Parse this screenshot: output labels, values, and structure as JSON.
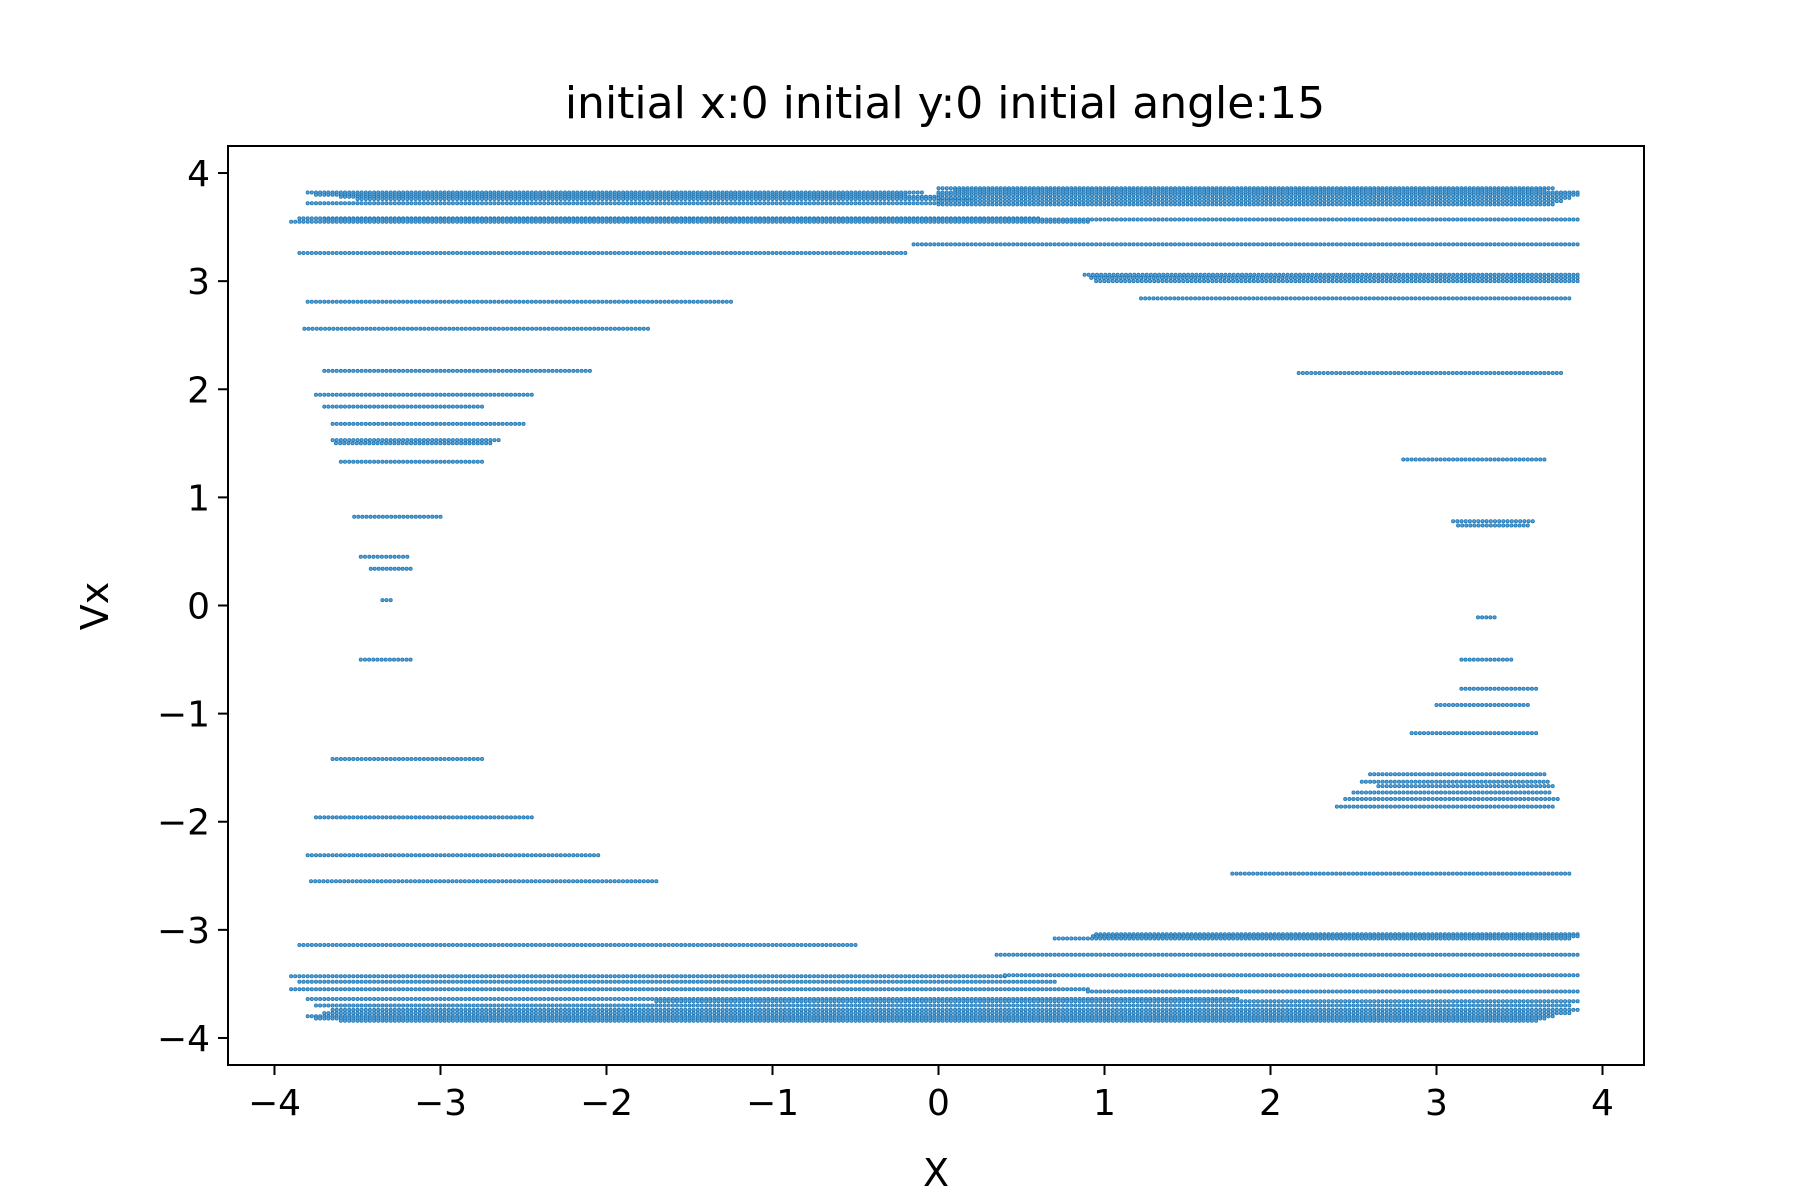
{
  "chart_data": {
    "type": "scatter",
    "title": "initial x:0  initial y:0 initial angle:15",
    "xlabel": "X",
    "ylabel": "Vx",
    "xlim": [
      -4.28,
      4.25
    ],
    "ylim": [
      -4.25,
      4.25
    ],
    "xticks": [
      -4,
      -3,
      -2,
      -1,
      0,
      1,
      2,
      3,
      4
    ],
    "yticks": [
      -4,
      -3,
      -2,
      -1,
      0,
      1,
      2,
      3,
      4
    ],
    "xtick_labels": [
      "−4",
      "−3",
      "−2",
      "−1",
      "0",
      "1",
      "2",
      "3",
      "4"
    ],
    "ytick_labels": [
      "−4",
      "−3",
      "−2",
      "−1",
      "0",
      "1",
      "2",
      "3",
      "4"
    ],
    "grid": false,
    "legend": "none",
    "marker_color": "#1f77b4",
    "series": [
      {
        "segments": [
          {
            "y": 3.82,
            "x0": -3.8,
            "x1": -0.1
          },
          {
            "y": 3.8,
            "x0": -3.75,
            "x1": -0.2
          },
          {
            "y": 3.78,
            "x0": -3.6,
            "x1": 0.0
          },
          {
            "y": 3.76,
            "x0": -3.5,
            "x1": 0.2
          },
          {
            "y": 3.72,
            "x0": -3.8,
            "x1": 0.0
          },
          {
            "y": 3.86,
            "x0": 0.0,
            "x1": 3.7
          },
          {
            "y": 3.84,
            "x0": 0.1,
            "x1": 3.65
          },
          {
            "y": 3.82,
            "x0": 0.0,
            "x1": 3.85
          },
          {
            "y": 3.8,
            "x0": 0.0,
            "x1": 3.85
          },
          {
            "y": 3.77,
            "x0": 0.0,
            "x1": 3.8
          },
          {
            "y": 3.74,
            "x0": 0.0,
            "x1": 3.75
          },
          {
            "y": 3.71,
            "x0": 0.0,
            "x1": 3.7
          },
          {
            "y": 3.58,
            "x0": -3.85,
            "x1": 0.6
          },
          {
            "y": 3.57,
            "x0": -3.7,
            "x1": 0.9
          },
          {
            "y": 3.55,
            "x0": -3.9,
            "x1": 0.9
          },
          {
            "y": 3.57,
            "x0": 0.9,
            "x1": 3.85
          },
          {
            "y": 3.26,
            "x0": -3.85,
            "x1": -0.2
          },
          {
            "y": 3.34,
            "x0": -0.15,
            "x1": 3.85
          },
          {
            "y": 3.06,
            "x0": 0.88,
            "x1": 3.85
          },
          {
            "y": 3.03,
            "x0": 0.92,
            "x1": 3.85
          },
          {
            "y": 3.0,
            "x0": 0.95,
            "x1": 3.85
          },
          {
            "y": 2.84,
            "x0": 1.22,
            "x1": 3.8
          },
          {
            "y": 2.81,
            "x0": -3.8,
            "x1": -1.25
          },
          {
            "y": 2.56,
            "x0": -3.82,
            "x1": -1.75
          },
          {
            "y": 2.17,
            "x0": -3.7,
            "x1": -2.1
          },
          {
            "y": 2.15,
            "x0": 2.17,
            "x1": 3.75
          },
          {
            "y": 1.95,
            "x0": -3.75,
            "x1": -2.45
          },
          {
            "y": 1.84,
            "x0": -3.7,
            "x1": -2.75
          },
          {
            "y": 1.68,
            "x0": -3.65,
            "x1": -2.5
          },
          {
            "y": 1.53,
            "x0": -3.65,
            "x1": -2.65
          },
          {
            "y": 1.5,
            "x0": -3.63,
            "x1": -2.7
          },
          {
            "y": 1.33,
            "x0": -3.6,
            "x1": -2.75
          },
          {
            "y": 1.35,
            "x0": 2.8,
            "x1": 3.65
          },
          {
            "y": 0.82,
            "x0": -3.52,
            "x1": -3.0
          },
          {
            "y": 0.78,
            "x0": 3.1,
            "x1": 3.58
          },
          {
            "y": 0.74,
            "x0": 3.13,
            "x1": 3.55
          },
          {
            "y": 0.45,
            "x0": -3.48,
            "x1": -3.2
          },
          {
            "y": 0.34,
            "x0": -3.42,
            "x1": -3.18
          },
          {
            "y": 0.05,
            "x0": -3.35,
            "x1": -3.3
          },
          {
            "y": -0.11,
            "x0": 3.25,
            "x1": 3.35
          },
          {
            "y": -0.5,
            "x0": -3.48,
            "x1": -3.18
          },
          {
            "y": -0.5,
            "x0": 3.15,
            "x1": 3.45
          },
          {
            "y": -0.77,
            "x0": 3.15,
            "x1": 3.6
          },
          {
            "y": -0.92,
            "x0": 3.0,
            "x1": 3.55
          },
          {
            "y": -1.18,
            "x0": 2.85,
            "x1": 3.6
          },
          {
            "y": -1.42,
            "x0": -3.65,
            "x1": -2.75
          },
          {
            "y": -1.56,
            "x0": 2.6,
            "x1": 3.65
          },
          {
            "y": -1.63,
            "x0": 2.55,
            "x1": 3.67
          },
          {
            "y": -1.67,
            "x0": 2.65,
            "x1": 3.7
          },
          {
            "y": -1.73,
            "x0": 2.5,
            "x1": 3.68
          },
          {
            "y": -1.79,
            "x0": 2.45,
            "x1": 3.73
          },
          {
            "y": -1.86,
            "x0": 2.4,
            "x1": 3.7
          },
          {
            "y": -1.96,
            "x0": -3.75,
            "x1": -2.45
          },
          {
            "y": -2.31,
            "x0": -3.8,
            "x1": -2.05
          },
          {
            "y": -2.48,
            "x0": 1.77,
            "x1": 3.8
          },
          {
            "y": -2.55,
            "x0": -3.78,
            "x1": -1.7
          },
          {
            "y": -3.04,
            "x0": 0.95,
            "x1": 3.85
          },
          {
            "y": -3.06,
            "x0": 0.93,
            "x1": 3.85
          },
          {
            "y": -3.08,
            "x0": 0.7,
            "x1": 3.8
          },
          {
            "y": -3.14,
            "x0": -3.85,
            "x1": -0.5
          },
          {
            "y": -3.23,
            "x0": 0.35,
            "x1": 3.85
          },
          {
            "y": -3.43,
            "x0": -3.9,
            "x1": 0.4
          },
          {
            "y": -3.48,
            "x0": -3.85,
            "x1": 0.7
          },
          {
            "y": -3.42,
            "x0": 0.4,
            "x1": 3.85
          },
          {
            "y": -3.55,
            "x0": -3.9,
            "x1": 0.9
          },
          {
            "y": -3.57,
            "x0": 0.9,
            "x1": 3.85
          },
          {
            "y": -3.64,
            "x0": -3.8,
            "x1": 1.8
          },
          {
            "y": -3.66,
            "x0": -1.7,
            "x1": 3.85
          },
          {
            "y": -3.7,
            "x0": -3.75,
            "x1": 3.8
          },
          {
            "y": -3.74,
            "x0": -3.65,
            "x1": 3.85
          },
          {
            "y": -3.77,
            "x0": -3.7,
            "x1": 3.8
          },
          {
            "y": -3.8,
            "x0": -3.8,
            "x1": 3.7
          },
          {
            "y": -3.82,
            "x0": -3.75,
            "x1": 3.65
          },
          {
            "y": -3.84,
            "x0": -3.6,
            "x1": 3.6
          }
        ]
      }
    ]
  }
}
